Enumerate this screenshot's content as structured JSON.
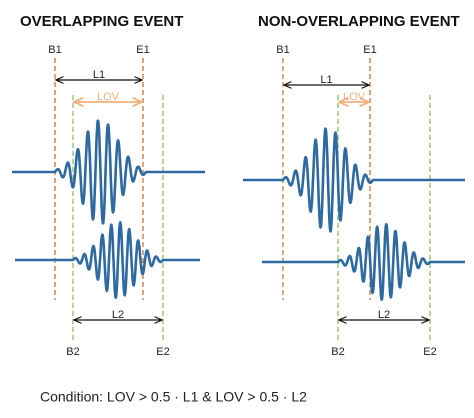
{
  "panels": [
    {
      "title": "OVERLAPPING EVENT",
      "b1": "B1",
      "e1": "E1",
      "l1": "L1",
      "lov": "LOV",
      "b2": "B2",
      "e2": "E2",
      "l2": "L2"
    },
    {
      "title": "NON-OVERLAPPING EVENT",
      "b1": "B1",
      "e1": "E1",
      "l1": "L1",
      "lov": "LOV",
      "b2": "B2",
      "e2": "E2",
      "l2": "L2"
    }
  ],
  "condition": "Condition: LOV > 0.5 · L1 & LOV > 0.5 · L2"
}
